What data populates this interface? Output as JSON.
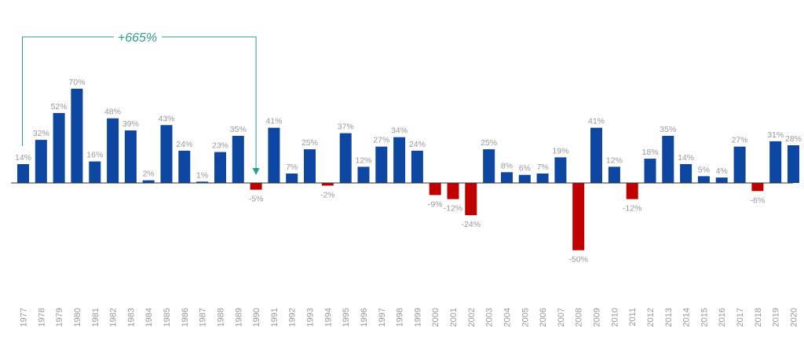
{
  "chart_data": {
    "type": "bar",
    "title": "",
    "xlabel": "",
    "ylabel": "",
    "ylim": [
      -50,
      70
    ],
    "grid": false,
    "categories": [
      "1977",
      "1978",
      "1979",
      "1980",
      "1981",
      "1982",
      "1983",
      "1984",
      "1985",
      "1986",
      "1987",
      "1988",
      "1989",
      "1990",
      "1991",
      "1992",
      "1993",
      "1994",
      "1995",
      "1996",
      "1997",
      "1998",
      "1999",
      "2000",
      "2001",
      "2002",
      "2003",
      "2004",
      "2005",
      "2006",
      "2007",
      "2008",
      "2009",
      "2010",
      "2011",
      "2012",
      "2013",
      "2014",
      "2015",
      "2016",
      "2017",
      "2018",
      "2019",
      "2020"
    ],
    "values": [
      14,
      32,
      52,
      70,
      16,
      48,
      39,
      2,
      43,
      24,
      1,
      23,
      35,
      -5,
      41,
      7,
      25,
      -2,
      37,
      12,
      27,
      34,
      24,
      -9,
      -12,
      -24,
      25,
      8,
      6,
      7,
      19,
      -50,
      41,
      12,
      -12,
      18,
      35,
      14,
      5,
      4,
      27,
      -6,
      31,
      28
    ],
    "labels": [
      "14%",
      "32%",
      "52%",
      "70%",
      "16%",
      "48%",
      "39%",
      "2%",
      "43%",
      "24%",
      "1%",
      "23%",
      "35%",
      "-5%",
      "41%",
      "7%",
      "25%",
      "-2%",
      "37%",
      "12%",
      "27%",
      "34%",
      "24%",
      "-9%",
      "-12%",
      "-24%",
      "25%",
      "8%",
      "6%",
      "7%",
      "19%",
      "-50%",
      "41%",
      "12%",
      "-12%",
      "18%",
      "35%",
      "14%",
      "5%",
      "4%",
      "27%",
      "-6%",
      "31%",
      "28%"
    ],
    "colors": {
      "positive": "#0d47a1",
      "negative": "#c00000",
      "annotation": "#2a9d8f",
      "label": "#999999"
    },
    "annotation": {
      "text": "+665%",
      "from": "1977",
      "to": "1990"
    }
  }
}
